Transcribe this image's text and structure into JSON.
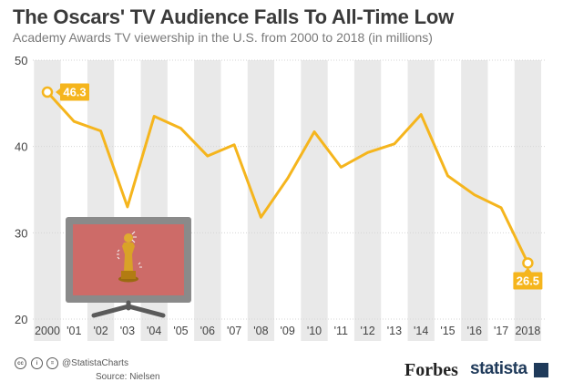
{
  "header": {
    "title": "The Oscars' TV Audience Falls To All-Time Low",
    "subtitle": "Academy Awards TV viewership in the U.S. from 2000 to 2018 (in millions)"
  },
  "footer": {
    "handle": "@StatistaCharts",
    "source": "Source: Nielsen",
    "forbes_logo": "Forbes",
    "statista_logo": "statista"
  },
  "colors": {
    "line": "#f5b51d",
    "band": "#e9e9e9",
    "grid": "#d6d6d6",
    "label_bg": "#f5b51d",
    "tv_frame": "#8a8a8a",
    "tv_screen": "#cd6b68",
    "oscar_gold": "#d9a227"
  },
  "illustration": {
    "icon": "tv-with-oscar-statuette-icon"
  },
  "chart_data": {
    "type": "line",
    "title": "The Oscars' TV Audience Falls To All-Time Low",
    "subtitle": "Academy Awards TV viewership in the U.S. from 2000 to 2018 (in millions)",
    "xlabel": "",
    "ylabel": "",
    "categories": [
      "2000",
      "'01",
      "'02",
      "'03",
      "'04",
      "'05",
      "'06",
      "'07",
      "'08",
      "'09",
      "'10",
      "'11",
      "'12",
      "'13",
      "'14",
      "'15",
      "'16",
      "'17",
      "2018"
    ],
    "series": [
      {
        "values": [
          46.3,
          42.9,
          41.8,
          33.0,
          43.5,
          42.1,
          38.9,
          40.2,
          31.8,
          36.3,
          41.7,
          37.6,
          39.3,
          40.3,
          43.7,
          36.6,
          34.4,
          32.9,
          26.5
        ]
      }
    ],
    "annotations": [
      {
        "category": "2000",
        "label": "46.3"
      },
      {
        "category": "2018",
        "label": "26.5"
      }
    ],
    "ylim": [
      20,
      50
    ],
    "yticks": [
      20,
      30,
      40,
      50
    ],
    "grid": true,
    "legend": "none"
  }
}
